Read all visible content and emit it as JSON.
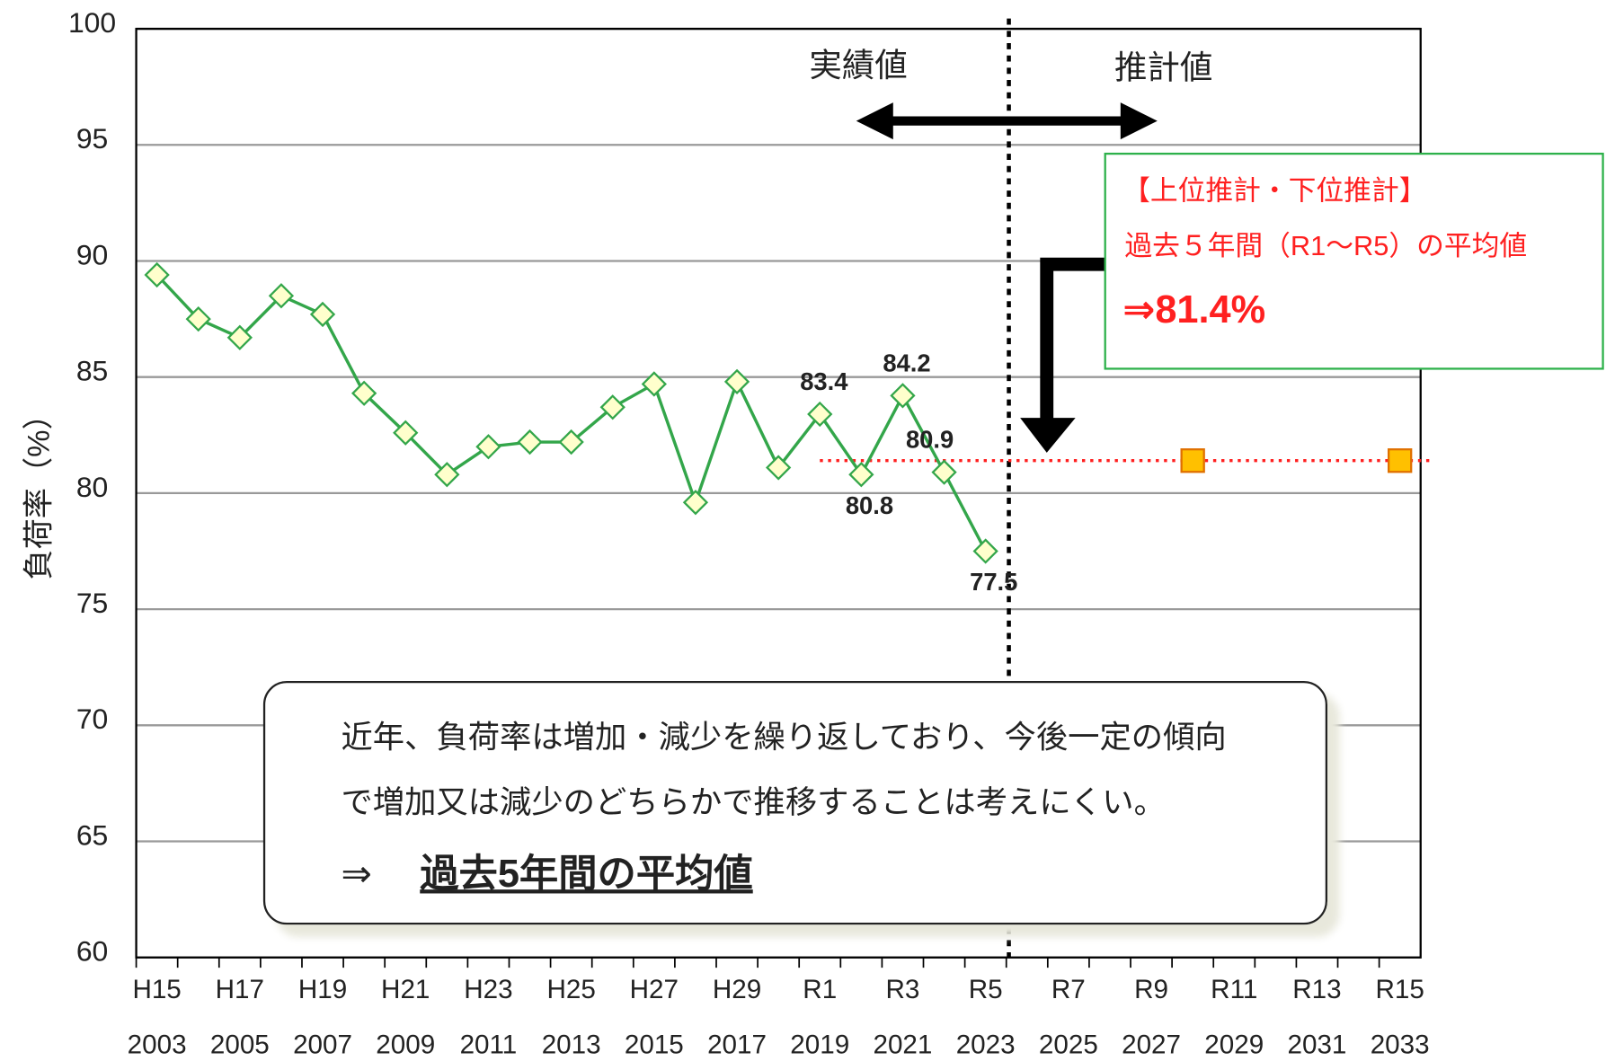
{
  "chart_data": {
    "type": "line",
    "y_label": "負荷率（%）",
    "categories": [
      "H15",
      null,
      "H17",
      null,
      "H19",
      null,
      "H21",
      null,
      "H23",
      null,
      "H25",
      null,
      "H27",
      null,
      "H29",
      null,
      "R1",
      null,
      "R3",
      null,
      "R5",
      null,
      "R7",
      null,
      "R9",
      null,
      "R11",
      null,
      "R13",
      null,
      "R15"
    ],
    "years": [
      "2003",
      null,
      "2005",
      null,
      "2007",
      null,
      "2009",
      null,
      "2011",
      null,
      "2013",
      null,
      "2015",
      null,
      "2017",
      null,
      "2019",
      null,
      "2021",
      null,
      "2023",
      null,
      "2025",
      null,
      "2027",
      null,
      "2029",
      null,
      "2031",
      null,
      "2033"
    ],
    "series": [
      {
        "color": "#33a64a",
        "marker_fill": "#ffffcc",
        "values": [
          89.4,
          87.5,
          86.7,
          88.5,
          87.7,
          84.3,
          82.6,
          80.8,
          82.0,
          82.2,
          82.2,
          83.7,
          84.7,
          79.6,
          84.8,
          81.1,
          83.4,
          80.8,
          84.2,
          80.9,
          77.5,
          null,
          null,
          null,
          null,
          null,
          null,
          null,
          null,
          null,
          null
        ],
        "value_labels": [
          null,
          null,
          null,
          null,
          null,
          null,
          null,
          null,
          null,
          null,
          null,
          null,
          null,
          null,
          null,
          null,
          "83.4",
          "80.8",
          "84.2",
          "80.9",
          "77.5",
          null,
          null,
          null,
          null,
          null,
          null,
          null,
          null,
          null,
          null
        ]
      },
      {
        "color": "#ffc000",
        "marker_stroke": "#e07000",
        "values": [
          null,
          null,
          null,
          null,
          null,
          null,
          null,
          null,
          null,
          null,
          null,
          null,
          null,
          null,
          null,
          null,
          null,
          null,
          null,
          null,
          null,
          null,
          null,
          null,
          null,
          81.4,
          null,
          null,
          null,
          null,
          81.4
        ]
      }
    ],
    "average": {
      "value": 81.4,
      "color": "#ff2020"
    },
    "ylim": [
      60,
      100
    ],
    "yticks": [
      60,
      65,
      70,
      75,
      80,
      85,
      90,
      95,
      100
    ],
    "grid": true,
    "annotations": {
      "actual": "実績値",
      "forecast": "推計値",
      "callout_title": "【上位推計・下位推計】",
      "callout_line": "過去５年間（R1～R5）の平均値",
      "callout_value": "⇒81.4%",
      "note_line1": "近年、負荷率は増加・減少を繰り返しており、今後一定の傾向",
      "note_line2": "で増加又は減少のどちらかで推移することは考えにくい。",
      "note_arrow": "⇒",
      "note_conclusion": "過去5年間の平均値"
    }
  }
}
